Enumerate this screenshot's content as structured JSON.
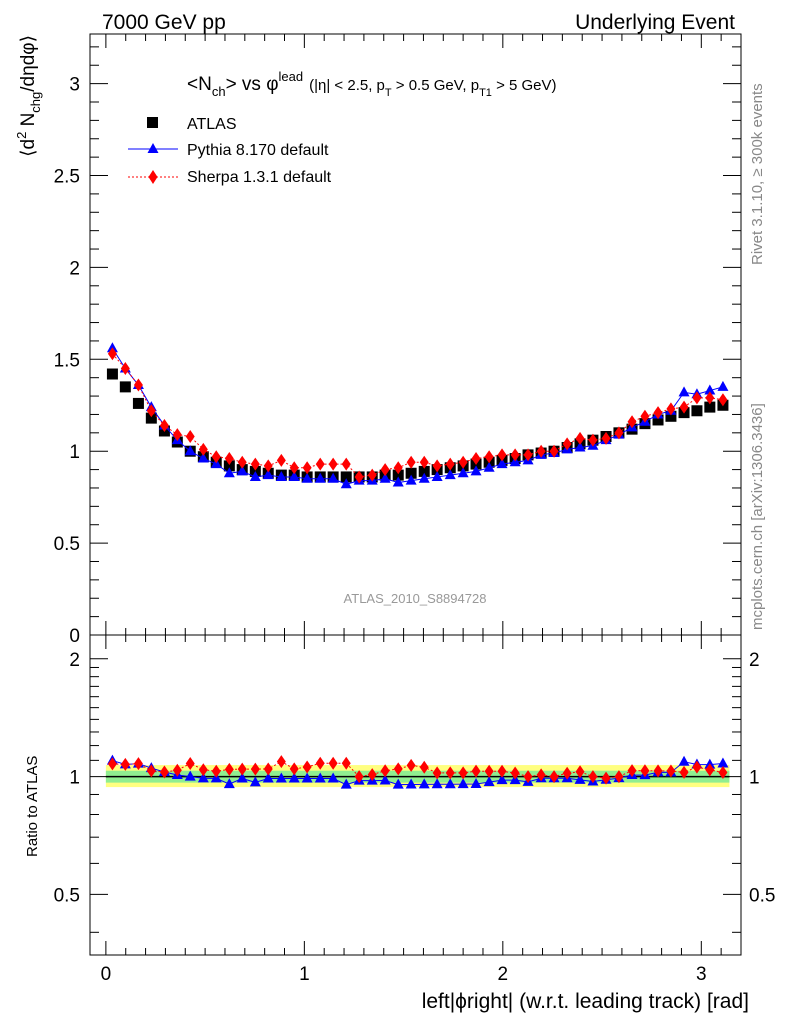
{
  "header": {
    "left": "7000 GeV pp",
    "right": "Underlying Event"
  },
  "side": {
    "rivet": "Rivet 3.1.10, ≥ 300k events",
    "mcplots": "mcplots.cern.ch [arXiv:1306.3436]"
  },
  "watermark": "ATLAS_2010_S8894728",
  "title": {
    "main": "<N",
    "sub": "ch",
    "mid": "> vs φ",
    "sup": "lead",
    "cuts": "(|η| < 2.5, p",
    "cuts_sub1": "T",
    "cuts_mid": " > 0.5 GeV, p",
    "cuts_sub2": "T1",
    "cuts_end": " > 5 GeV)"
  },
  "ylabel_main": {
    "a": "⟨d",
    "b": "2",
    "c": " N",
    "d": "chg",
    "e": "/dηdφ⟩"
  },
  "ylabel_ratio": "Ratio to ATLAS",
  "xlabel": "left|ϕright| (w.r.t. leading track) [rad]",
  "colors": {
    "atlas": "#000000",
    "pythia": "#0000ff",
    "sherpa": "#ff0000",
    "band_inner": "#90ee90",
    "band_outer": "#ffff80"
  },
  "chart_data": {
    "type": "scatter",
    "xlim": [
      -0.08,
      3.2
    ],
    "ylim_main": [
      0,
      3.27
    ],
    "ylim_ratio": [
      0.35,
      2.3
    ],
    "x_ticks": [
      "0",
      "1",
      "2",
      "3"
    ],
    "y_ticks_main": [
      "0",
      "0.5",
      "1",
      "1.5",
      "2",
      "2.5",
      "3"
    ],
    "y_ticks_ratio": [
      "0.5",
      "1",
      "2"
    ],
    "x": [
      0.033,
      0.098,
      0.164,
      0.229,
      0.295,
      0.36,
      0.425,
      0.491,
      0.556,
      0.622,
      0.687,
      0.753,
      0.818,
      0.884,
      0.949,
      1.014,
      1.08,
      1.145,
      1.211,
      1.276,
      1.342,
      1.407,
      1.473,
      1.538,
      1.604,
      1.669,
      1.735,
      1.8,
      1.865,
      1.931,
      1.996,
      2.062,
      2.127,
      2.193,
      2.258,
      2.324,
      2.389,
      2.454,
      2.52,
      2.585,
      2.651,
      2.716,
      2.782,
      2.847,
      2.913,
      2.978,
      3.043,
      3.109
    ],
    "legend": [
      "ATLAS",
      "Pythia 8.170 default",
      "Sherpa 1.3.1 default"
    ],
    "series": [
      {
        "name": "ATLAS",
        "values": [
          1.42,
          1.35,
          1.26,
          1.18,
          1.11,
          1.05,
          1.0,
          0.97,
          0.94,
          0.92,
          0.9,
          0.89,
          0.88,
          0.87,
          0.87,
          0.86,
          0.86,
          0.86,
          0.86,
          0.86,
          0.86,
          0.87,
          0.87,
          0.88,
          0.89,
          0.9,
          0.91,
          0.92,
          0.93,
          0.94,
          0.95,
          0.96,
          0.98,
          0.99,
          1.0,
          1.02,
          1.04,
          1.06,
          1.08,
          1.1,
          1.12,
          1.15,
          1.17,
          1.19,
          1.21,
          1.22,
          1.24,
          1.25
        ]
      },
      {
        "name": "Pythia 8.170 default",
        "values": [
          1.56,
          1.45,
          1.36,
          1.24,
          1.14,
          1.06,
          1.0,
          0.96,
          0.93,
          0.88,
          0.89,
          0.86,
          0.87,
          0.86,
          0.86,
          0.85,
          0.85,
          0.85,
          0.82,
          0.84,
          0.84,
          0.85,
          0.83,
          0.84,
          0.85,
          0.86,
          0.87,
          0.88,
          0.89,
          0.91,
          0.93,
          0.94,
          0.95,
          0.98,
          0.99,
          1.01,
          1.02,
          1.03,
          1.06,
          1.09,
          1.13,
          1.16,
          1.2,
          1.22,
          1.32,
          1.31,
          1.33,
          1.35
        ]
      },
      {
        "name": "Sherpa 1.3.1 default",
        "values": [
          1.53,
          1.45,
          1.36,
          1.22,
          1.14,
          1.09,
          1.08,
          1.01,
          0.97,
          0.96,
          0.94,
          0.93,
          0.92,
          0.95,
          0.91,
          0.91,
          0.93,
          0.93,
          0.93,
          0.86,
          0.87,
          0.9,
          0.91,
          0.94,
          0.94,
          0.92,
          0.93,
          0.94,
          0.96,
          0.97,
          0.98,
          0.98,
          0.98,
          1.0,
          1.0,
          1.04,
          1.07,
          1.06,
          1.07,
          1.1,
          1.16,
          1.19,
          1.21,
          1.23,
          1.24,
          1.29,
          1.29,
          1.28
        ]
      }
    ]
  }
}
